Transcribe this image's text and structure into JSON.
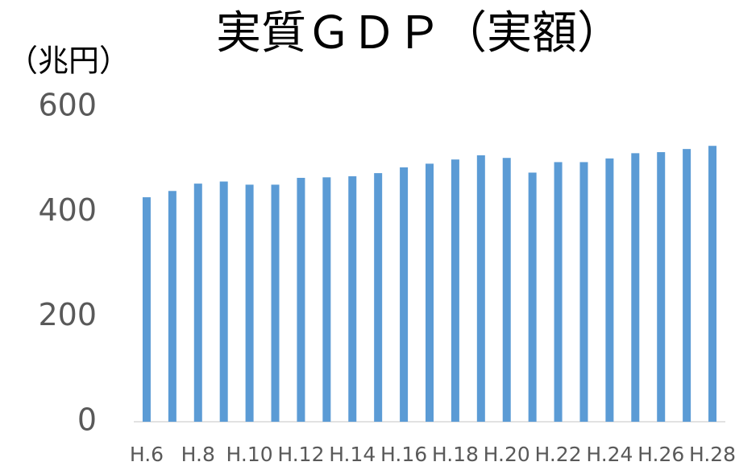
{
  "chart_data": {
    "type": "bar",
    "title": "実質ＧＤＰ（実額）",
    "y_label": "（兆円）",
    "categories": [
      "H.6",
      null,
      "H.8",
      null,
      "H.10",
      null,
      "H.12",
      null,
      "H.14",
      null,
      "H.16",
      null,
      "H.18",
      null,
      "H.20",
      null,
      "H.22",
      null,
      "H.24",
      null,
      "H.26",
      null,
      "H.28"
    ],
    "values": [
      428,
      440,
      454,
      458,
      452,
      452,
      465,
      466,
      468,
      474,
      485,
      492,
      500,
      508,
      503,
      475,
      495,
      495,
      502,
      512,
      514,
      520,
      526
    ],
    "color": "#5b9bd5",
    "ylim": [
      0,
      600
    ],
    "yticks": [
      0,
      200,
      400,
      600
    ],
    "grid": false
  }
}
